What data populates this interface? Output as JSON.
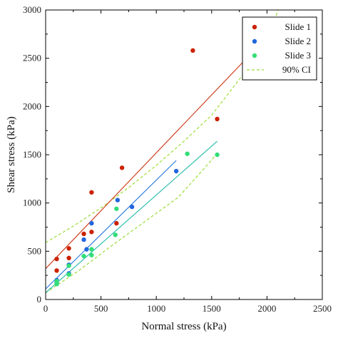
{
  "chart_data": {
    "type": "scatter",
    "xlabel": "Normal stress (kPa)",
    "ylabel": "Shear stress (kPa)",
    "xlim": [
      0,
      2500
    ],
    "ylim": [
      0,
      3000
    ],
    "xticks": [
      0,
      500,
      1000,
      1500,
      2000,
      2500
    ],
    "yticks": [
      0,
      500,
      1000,
      1500,
      2000,
      2500,
      3000
    ],
    "grid": false,
    "legend_position": "top-right",
    "series": [
      {
        "name": "Slide 1",
        "kind": "points",
        "color": "#cc2200",
        "points": [
          [
            100,
            300
          ],
          [
            100,
            420
          ],
          [
            210,
            430
          ],
          [
            210,
            530
          ],
          [
            345,
            680
          ],
          [
            415,
            700
          ],
          [
            415,
            1110
          ],
          [
            640,
            790
          ],
          [
            690,
            1365
          ],
          [
            1330,
            2580
          ],
          [
            1550,
            1870
          ]
        ]
      },
      {
        "name": "Slide 2",
        "kind": "points",
        "color": "#2266dd",
        "points": [
          [
            100,
            170
          ],
          [
            100,
            200
          ],
          [
            210,
            270
          ],
          [
            210,
            360
          ],
          [
            345,
            620
          ],
          [
            370,
            520
          ],
          [
            415,
            790
          ],
          [
            650,
            1030
          ],
          [
            780,
            960
          ],
          [
            1180,
            1330
          ]
        ]
      },
      {
        "name": "Slide 3",
        "kind": "points",
        "color": "#33dd77",
        "points": [
          [
            100,
            160
          ],
          [
            100,
            190
          ],
          [
            210,
            260
          ],
          [
            210,
            350
          ],
          [
            345,
            450
          ],
          [
            415,
            460
          ],
          [
            415,
            520
          ],
          [
            630,
            670
          ],
          [
            640,
            940
          ],
          [
            1280,
            1510
          ],
          [
            1550,
            1500
          ]
        ]
      },
      {
        "name": "90% CI",
        "kind": "dashed",
        "color": "#99dd33",
        "legend": true,
        "segments": [
          [
            [
              0,
              590
            ],
            [
              250,
              760
            ],
            [
              500,
              950
            ],
            [
              750,
              1160
            ],
            [
              1000,
              1390
            ],
            [
              1250,
              1640
            ],
            [
              1500,
              1910
            ],
            [
              1750,
              2280
            ],
            [
              2000,
              2680
            ],
            [
              2100,
              3000
            ]
          ],
          [
            [
              0,
              70
            ],
            [
              300,
              300
            ],
            [
              600,
              560
            ],
            [
              900,
              810
            ],
            [
              1200,
              1060
            ],
            [
              1550,
              1510
            ]
          ]
        ]
      },
      {
        "name": "Slide 1 fit",
        "kind": "line",
        "color": "#cc3311",
        "legend": false,
        "points": [
          [
            0,
            320
          ],
          [
            2000,
            2720
          ]
        ]
      },
      {
        "name": "Slide 2 fit",
        "kind": "line",
        "color": "#2277dd",
        "legend": false,
        "points": [
          [
            0,
            110
          ],
          [
            1180,
            1440
          ]
        ]
      },
      {
        "name": "Slide 3 fit",
        "kind": "line",
        "color": "#22bbaa",
        "legend": false,
        "points": [
          [
            0,
            70
          ],
          [
            1550,
            1640
          ]
        ]
      }
    ]
  }
}
